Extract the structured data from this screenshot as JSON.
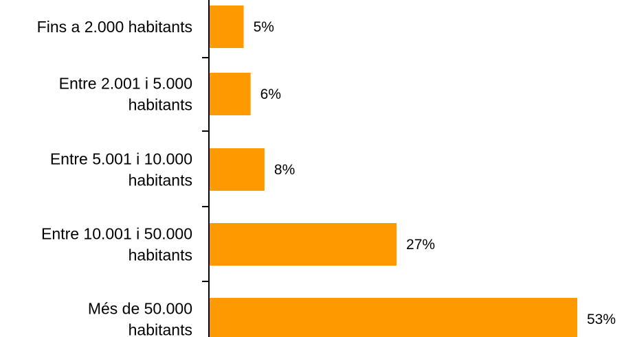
{
  "chart_data": {
    "type": "bar",
    "orientation": "horizontal",
    "categories": [
      [
        "Fins a 2.000 habitants"
      ],
      [
        "Entre 2.001 i 5.000",
        "habitants"
      ],
      [
        "Entre 5.001 i 10.000",
        "habitants"
      ],
      [
        "Entre 10.001 i 50.000",
        "habitants"
      ],
      [
        "Més de 50.000",
        "habitants"
      ]
    ],
    "values": [
      5,
      6,
      8,
      27,
      53
    ],
    "value_labels": [
      "5%",
      "6%",
      "8%",
      "27%",
      "53%"
    ],
    "xlim": [
      0,
      53
    ],
    "bar_color": "#ff9900",
    "title": "",
    "xlabel": "",
    "ylabel": "",
    "grid": false,
    "legend": "none"
  }
}
